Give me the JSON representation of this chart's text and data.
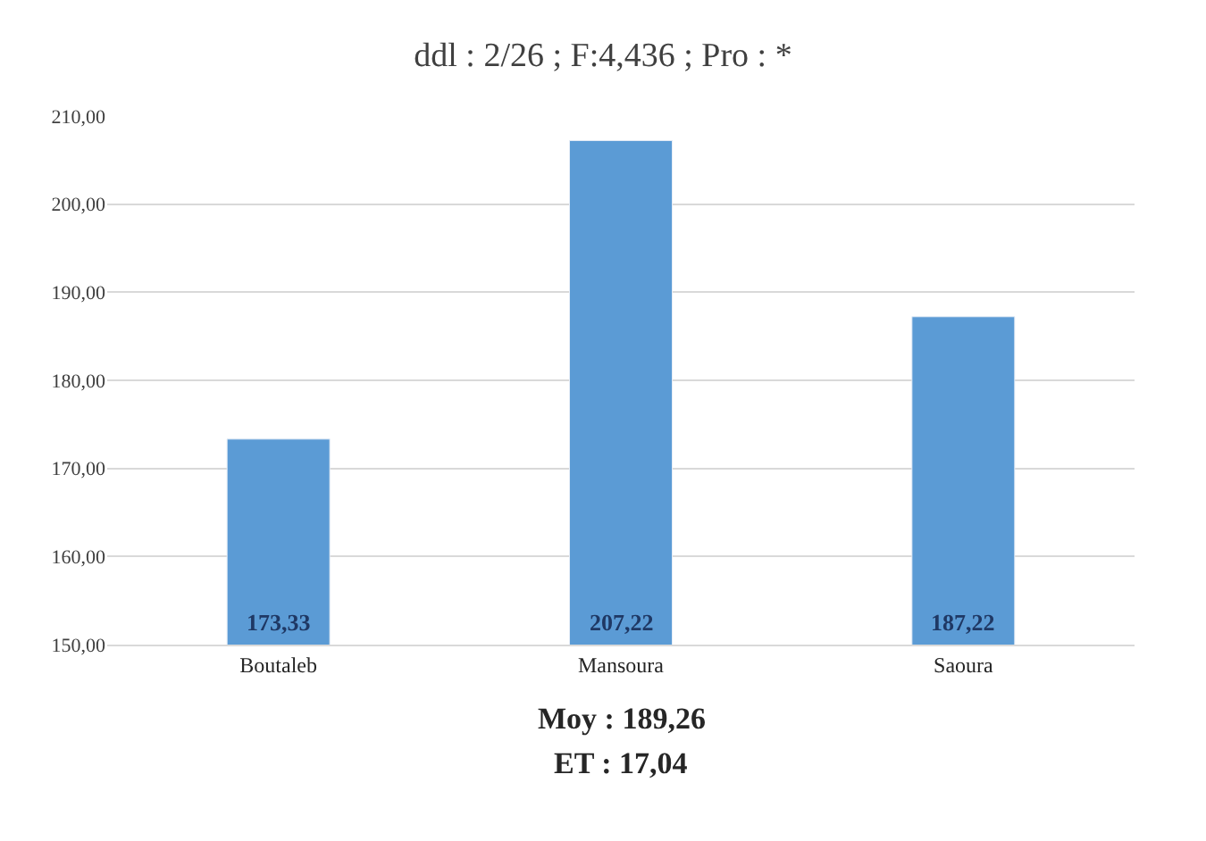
{
  "chart_data": {
    "type": "bar",
    "title": "ddl : 2/26 ; F:4,436 ; Pro : *",
    "categories": [
      "Boutaleb",
      "Mansoura",
      "Saoura"
    ],
    "values": [
      173.33,
      207.22,
      187.22
    ],
    "value_labels": [
      "173,33",
      "207,22",
      "187,22"
    ],
    "color": "#5b9bd5",
    "ylim": [
      150,
      210
    ],
    "yticks": [
      {
        "value": 150,
        "label": "150,00"
      },
      {
        "value": 160,
        "label": "160,00"
      },
      {
        "value": 170,
        "label": "170,00"
      },
      {
        "value": 180,
        "label": "180,00"
      },
      {
        "value": 190,
        "label": "190,00"
      },
      {
        "value": 200,
        "label": "200,00"
      },
      {
        "value": 210,
        "label": "210,00"
      }
    ],
    "grid": "y",
    "annotations": [
      "Moy : 189,26",
      "ET : 17,04"
    ]
  }
}
